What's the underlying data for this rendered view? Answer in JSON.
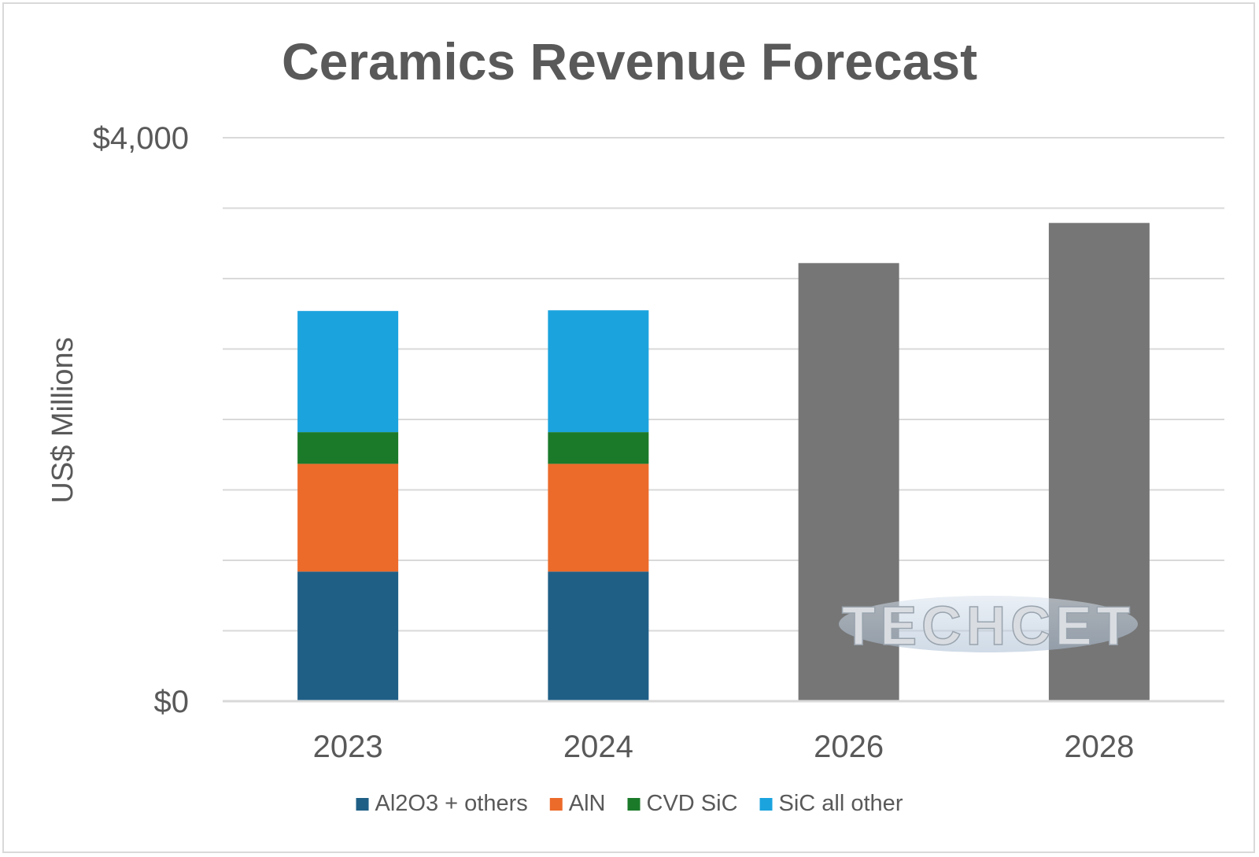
{
  "chart_data": {
    "type": "bar",
    "stacked": true,
    "title": "Ceramics Revenue Forecast",
    "xlabel": "",
    "ylabel": "US$ Millions",
    "categories": [
      "2023",
      "2024",
      "2026",
      "2028"
    ],
    "ylim": [
      0,
      4000
    ],
    "ytick_labels": [
      "$0",
      "$4,000"
    ],
    "gridline_step": 500,
    "grid": true,
    "legend_position": "bottom",
    "series": [
      {
        "name": "Al2O3 + others",
        "color": "#1f5f86",
        "values": [
          920,
          920,
          null,
          null
        ]
      },
      {
        "name": "AlN",
        "color": "#ec6a2a",
        "values": [
          765,
          765,
          null,
          null
        ]
      },
      {
        "name": "CVD SiC",
        "color": "#1b7a2a",
        "values": [
          225,
          225,
          null,
          null
        ]
      },
      {
        "name": "SiC all other",
        "color": "#1ba3de",
        "values": [
          860,
          865,
          null,
          null
        ]
      }
    ],
    "totals_series": {
      "color": "#767676",
      "values": [
        null,
        null,
        3110,
        3395
      ]
    }
  },
  "watermark": "TECHCET"
}
